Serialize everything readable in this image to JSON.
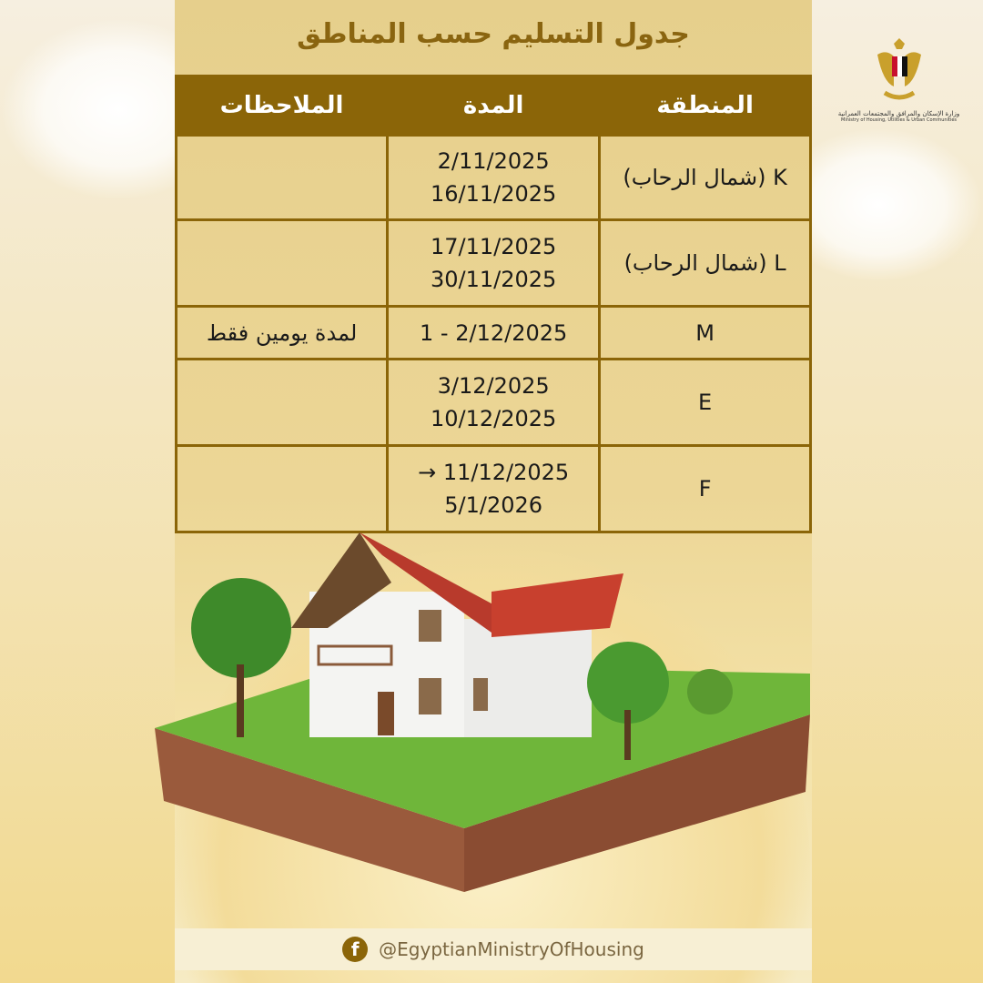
{
  "title": "جدول التسليم حسب المناطق",
  "logo": {
    "name_ar": "وزارة الإسكان والمرافق والمجتمعات العمرانية",
    "name_en": "Ministry of Housing, Utilities & Urban Communities"
  },
  "table": {
    "headers": {
      "zone": "المنطقة",
      "duration": "المدة",
      "notes": "الملاحظات"
    },
    "rows": [
      {
        "zone": "K (شمال الرحاب)",
        "duration_1": "2/11/2025",
        "duration_2": "16/11/2025",
        "notes": ""
      },
      {
        "zone": "L (شمال الرحاب)",
        "duration_1": "17/11/2025",
        "duration_2": "30/11/2025",
        "notes": ""
      },
      {
        "zone": "M",
        "duration_1": "1 - 2/12/2025",
        "duration_2": "",
        "notes": "لمدة يومين فقط"
      },
      {
        "zone": "E",
        "duration_1": "3/12/2025",
        "duration_2": "10/12/2025",
        "notes": ""
      },
      {
        "zone": "F",
        "duration_1": "→ 11/12/2025",
        "duration_2": "5/1/2026",
        "notes": ""
      }
    ]
  },
  "footer": {
    "handle": "@EgyptianMinistryOfHousing",
    "icon": "facebook-icon"
  },
  "colors": {
    "header": "#8b6508",
    "title": "#8a6510",
    "cell": "#e9cf8a"
  }
}
